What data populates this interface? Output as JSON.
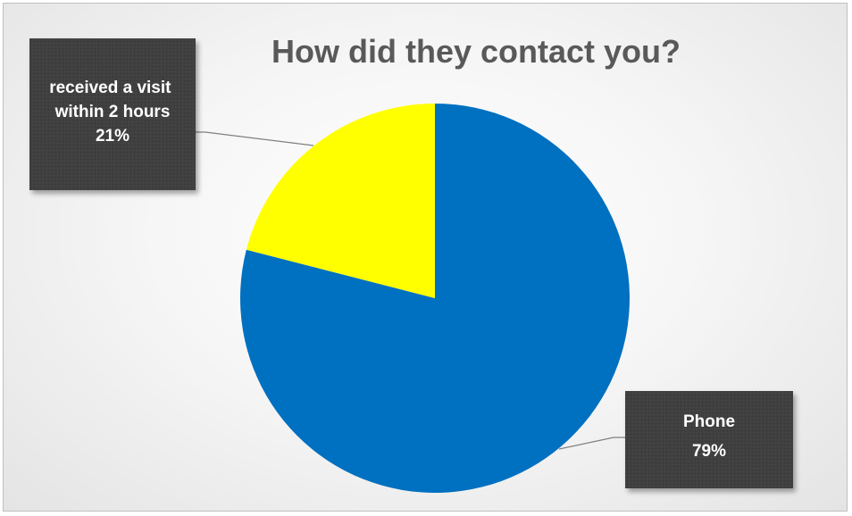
{
  "chart_data": {
    "type": "pie",
    "title": "How did they contact you?",
    "slices": [
      {
        "label": "Phone",
        "percent_label": "79%",
        "value": 79,
        "color": "#0070c0"
      },
      {
        "label": "received a visit within 2 hours",
        "percent_label": "21%",
        "value": 21,
        "color": "#ffff00"
      }
    ],
    "label_box_color": "#404040",
    "leader_line_color": "#7f7f7f"
  }
}
